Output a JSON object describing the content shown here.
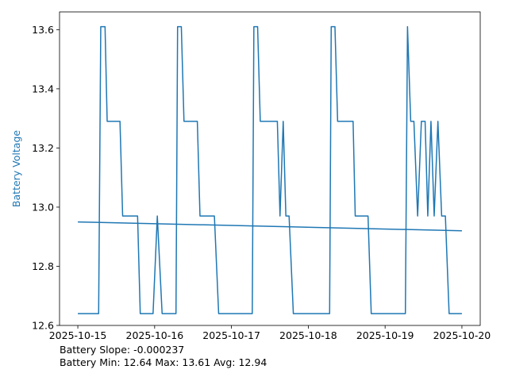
{
  "chart_data": {
    "type": "line",
    "ylabel": "Battery Voltage",
    "ylabel_color": "#1f77b4",
    "line_color": "#1f77b4",
    "xlim": [
      "2025-10-15",
      "2025-10-20"
    ],
    "ylim": [
      12.6,
      13.66
    ],
    "x_ticks": [
      "2025-10-15",
      "2025-10-16",
      "2025-10-17",
      "2025-10-18",
      "2025-10-19",
      "2025-10-20"
    ],
    "y_ticks": [
      "12.6",
      "12.8",
      "13.0",
      "13.2",
      "13.4",
      "13.6"
    ],
    "grid": false,
    "series": [
      {
        "values": [
          [
            "2025-10-15T00:00",
            12.64
          ],
          [
            "2025-10-15T06:30",
            12.64
          ],
          [
            "2025-10-15T07:10",
            13.61
          ],
          [
            "2025-10-15T08:30",
            13.61
          ],
          [
            "2025-10-15T09:10",
            13.29
          ],
          [
            "2025-10-15T13:10",
            13.29
          ],
          [
            "2025-10-15T14:00",
            12.97
          ],
          [
            "2025-10-15T18:40",
            12.97
          ],
          [
            "2025-10-15T19:30",
            12.64
          ],
          [
            "2025-10-15T23:30",
            12.64
          ],
          [
            "2025-10-16T00:50",
            12.97
          ],
          [
            "2025-10-16T02:20",
            12.64
          ],
          [
            "2025-10-16T06:40",
            12.64
          ],
          [
            "2025-10-16T07:10",
            13.61
          ],
          [
            "2025-10-16T08:20",
            13.61
          ],
          [
            "2025-10-16T09:10",
            13.29
          ],
          [
            "2025-10-16T13:20",
            13.29
          ],
          [
            "2025-10-16T14:10",
            12.97
          ],
          [
            "2025-10-16T18:40",
            12.97
          ],
          [
            "2025-10-16T20:00",
            12.64
          ],
          [
            "2025-10-17T06:30",
            12.64
          ],
          [
            "2025-10-17T07:00",
            13.61
          ],
          [
            "2025-10-17T08:10",
            13.61
          ],
          [
            "2025-10-17T09:00",
            13.29
          ],
          [
            "2025-10-17T14:20",
            13.29
          ],
          [
            "2025-10-17T15:10",
            12.97
          ],
          [
            "2025-10-17T16:10",
            13.29
          ],
          [
            "2025-10-17T17:00",
            12.97
          ],
          [
            "2025-10-17T18:00",
            12.97
          ],
          [
            "2025-10-17T19:20",
            12.64
          ],
          [
            "2025-10-18T06:40",
            12.64
          ],
          [
            "2025-10-18T07:10",
            13.61
          ],
          [
            "2025-10-18T08:20",
            13.61
          ],
          [
            "2025-10-18T09:10",
            13.29
          ],
          [
            "2025-10-18T14:00",
            13.29
          ],
          [
            "2025-10-18T14:40",
            12.97
          ],
          [
            "2025-10-18T18:40",
            12.97
          ],
          [
            "2025-10-18T19:40",
            12.64
          ],
          [
            "2025-10-19T06:20",
            12.64
          ],
          [
            "2025-10-19T07:00",
            13.61
          ],
          [
            "2025-10-19T08:00",
            13.29
          ],
          [
            "2025-10-19T09:00",
            13.29
          ],
          [
            "2025-10-19T10:10",
            12.97
          ],
          [
            "2025-10-19T11:20",
            13.29
          ],
          [
            "2025-10-19T12:30",
            13.29
          ],
          [
            "2025-10-19T13:20",
            12.97
          ],
          [
            "2025-10-19T14:20",
            13.29
          ],
          [
            "2025-10-19T15:20",
            12.97
          ],
          [
            "2025-10-19T16:30",
            13.29
          ],
          [
            "2025-10-19T17:40",
            12.97
          ],
          [
            "2025-10-19T18:50",
            12.97
          ],
          [
            "2025-10-19T20:00",
            12.64
          ],
          [
            "2025-10-20T00:00",
            12.64
          ]
        ]
      },
      {
        "values": [
          [
            "2025-10-15T00:00",
            12.95
          ],
          [
            "2025-10-20T00:00",
            12.92
          ]
        ]
      }
    ]
  },
  "stats": {
    "slope_text": "Battery Slope: -0.000237",
    "summary_text": "Battery Min: 12.64 Max: 13.61 Avg: 12.94"
  }
}
